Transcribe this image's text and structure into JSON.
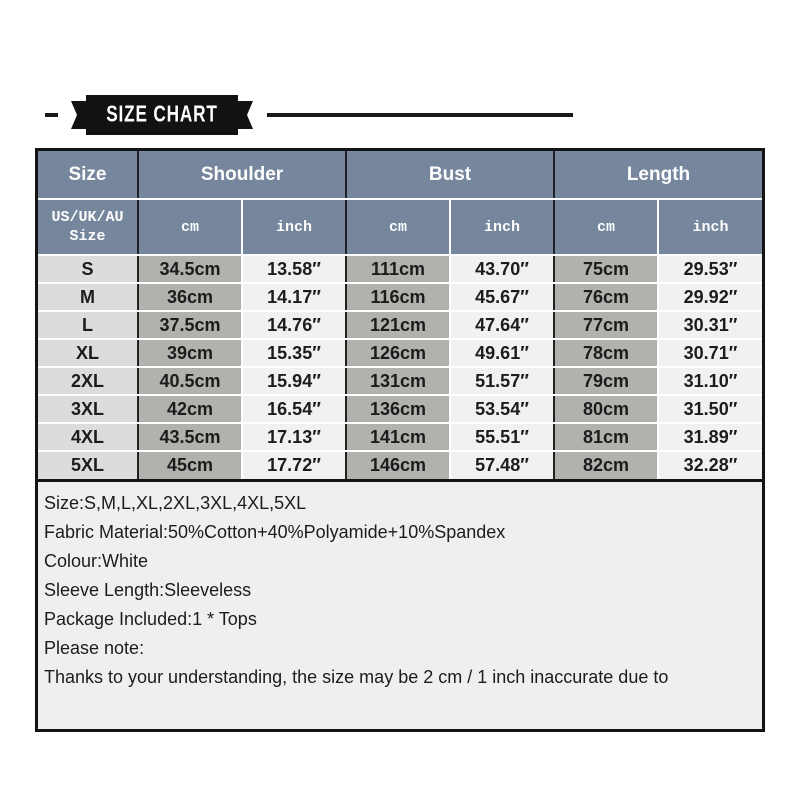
{
  "banner": {
    "title": "SIZE CHART"
  },
  "table": {
    "groups": [
      {
        "label": "Size"
      },
      {
        "label": "Shoulder"
      },
      {
        "label": "Bust"
      },
      {
        "label": "Length"
      }
    ],
    "subheader": {
      "cells": [
        "US/UK/AU Size",
        "cm",
        "inch",
        "cm",
        "inch",
        "cm",
        "inch"
      ]
    },
    "rows": [
      {
        "cells": [
          "S",
          "34.5cm",
          "13.58″",
          "111cm",
          "43.70″",
          "75cm",
          "29.53″"
        ]
      },
      {
        "cells": [
          "M",
          "36cm",
          "14.17″",
          "116cm",
          "45.67″",
          "76cm",
          "29.92″"
        ]
      },
      {
        "cells": [
          "L",
          "37.5cm",
          "14.76″",
          "121cm",
          "47.64″",
          "77cm",
          "30.31″"
        ]
      },
      {
        "cells": [
          "XL",
          "39cm",
          "15.35″",
          "126cm",
          "49.61″",
          "78cm",
          "30.71″"
        ]
      },
      {
        "cells": [
          "2XL",
          "40.5cm",
          "15.94″",
          "131cm",
          "51.57″",
          "79cm",
          "31.10″"
        ]
      },
      {
        "cells": [
          "3XL",
          "42cm",
          "16.54″",
          "136cm",
          "53.54″",
          "80cm",
          "31.50″"
        ]
      },
      {
        "cells": [
          "4XL",
          "43.5cm",
          "17.13″",
          "141cm",
          "55.51″",
          "81cm",
          "31.89″"
        ]
      },
      {
        "cells": [
          "5XL",
          "45cm",
          "17.72″",
          "146cm",
          "57.48″",
          "82cm",
          "32.28″"
        ]
      }
    ]
  },
  "notes": {
    "lines": [
      "Size:S,M,L,XL,2XL,3XL,4XL,5XL",
      "Fabric Material:50%Cotton+40%Polyamide+10%Spandex",
      "Colour:White",
      "Sleeve Length:Sleeveless",
      "Package Included:1 * Tops",
      "Please note:",
      "Thanks to your understanding, the size may be 2 cm / 1 inch inaccurate due to"
    ]
  },
  "colors": {
    "header_bg": "#76879D",
    "size_col_bg": "#dcdcdc",
    "cm_col_bg": "#b3b1ae",
    "inch_col_bg": "#f2f1ef",
    "notes_bg": "#f0efed",
    "border": "#141414",
    "banner_bg": "#121212"
  },
  "chart_data": {
    "type": "table",
    "title": "SIZE CHART",
    "column_groups": [
      "Size",
      "Shoulder",
      "Bust",
      "Length"
    ],
    "columns": [
      "US/UK/AU Size",
      "Shoulder cm",
      "Shoulder inch",
      "Bust cm",
      "Bust inch",
      "Length cm",
      "Length inch"
    ],
    "rows": [
      [
        "S",
        "34.5cm",
        "13.58″",
        "111cm",
        "43.70″",
        "75cm",
        "29.53″"
      ],
      [
        "M",
        "36cm",
        "14.17″",
        "116cm",
        "45.67″",
        "76cm",
        "29.92″"
      ],
      [
        "L",
        "37.5cm",
        "14.76″",
        "121cm",
        "47.64″",
        "77cm",
        "30.31″"
      ],
      [
        "XL",
        "39cm",
        "15.35″",
        "126cm",
        "49.61″",
        "78cm",
        "30.71″"
      ],
      [
        "2XL",
        "40.5cm",
        "15.94″",
        "131cm",
        "51.57″",
        "79cm",
        "31.10″"
      ],
      [
        "3XL",
        "42cm",
        "16.54″",
        "136cm",
        "53.54″",
        "80cm",
        "31.50″"
      ],
      [
        "4XL",
        "43.5cm",
        "17.13″",
        "141cm",
        "55.51″",
        "81cm",
        "31.89″"
      ],
      [
        "5XL",
        "45cm",
        "17.72″",
        "146cm",
        "57.48″",
        "82cm",
        "32.28″"
      ]
    ]
  }
}
